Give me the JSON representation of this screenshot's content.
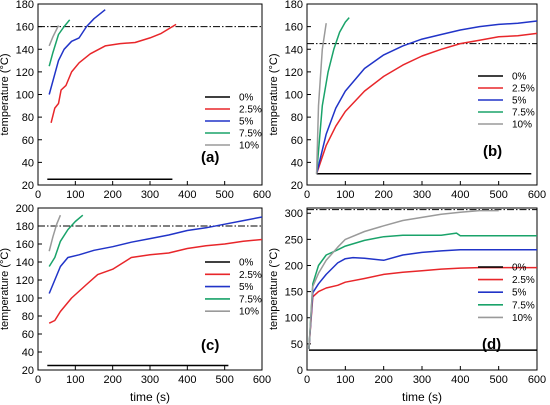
{
  "chart_data": [
    {
      "id": "a",
      "type": "line",
      "panel_label": "(a)",
      "xlabel": "",
      "ylabel": "temperature (°C)",
      "xlim": [
        0,
        600
      ],
      "ylim": [
        20,
        180
      ],
      "xticks": [
        "0",
        "100",
        "200",
        "300",
        "400",
        "500",
        "600"
      ],
      "yticks": [
        "20",
        "40",
        "60",
        "80",
        "100",
        "120",
        "140",
        "160",
        "180"
      ],
      "reference_line": 160,
      "legend_position": "right",
      "series": [
        {
          "name": "0%",
          "color": "#000000",
          "x": [
            25,
            360
          ],
          "y": [
            25,
            25
          ]
        },
        {
          "name": "2.5%",
          "color": "#e8262a",
          "x": [
            35,
            45,
            55,
            62,
            75,
            90,
            110,
            140,
            180,
            220,
            260,
            300,
            330,
            370
          ],
          "y": [
            75,
            88,
            92,
            104,
            108,
            120,
            128,
            136,
            143,
            145,
            146,
            150,
            154,
            162
          ]
        },
        {
          "name": "5%",
          "color": "#2134c8",
          "x": [
            30,
            45,
            55,
            70,
            90,
            110,
            130,
            150,
            180
          ],
          "y": [
            100,
            118,
            130,
            140,
            147,
            150,
            160,
            167,
            175
          ]
        },
        {
          "name": "7.5%",
          "color": "#1aa36a",
          "x": [
            30,
            40,
            55,
            70,
            85
          ],
          "y": [
            125,
            137,
            153,
            160,
            166
          ]
        },
        {
          "name": "10%",
          "color": "#9a9a9a",
          "x": [
            30,
            40,
            55
          ],
          "y": [
            143,
            151,
            161
          ]
        }
      ]
    },
    {
      "id": "b",
      "type": "line",
      "panel_label": "(b)",
      "xlabel": "",
      "ylabel": "temperature (°C)",
      "xlim": [
        0,
        600
      ],
      "ylim": [
        20,
        180
      ],
      "xticks": [
        "0",
        "100",
        "200",
        "300",
        "400",
        "500",
        "600"
      ],
      "yticks": [
        "20",
        "40",
        "60",
        "80",
        "100",
        "120",
        "140",
        "160",
        "180"
      ],
      "reference_line": 145,
      "legend_position": "right",
      "series": [
        {
          "name": "0%",
          "color": "#000000",
          "x": [
            25,
            585
          ],
          "y": [
            30,
            30
          ]
        },
        {
          "name": "2.5%",
          "color": "#e8262a",
          "x": [
            25,
            50,
            75,
            100,
            150,
            200,
            250,
            300,
            350,
            400,
            450,
            500,
            550,
            600
          ],
          "y": [
            30,
            55,
            72,
            85,
            103,
            116,
            126,
            134,
            140,
            145,
            148,
            151,
            152,
            154
          ]
        },
        {
          "name": "5%",
          "color": "#2134c8",
          "x": [
            25,
            50,
            75,
            100,
            150,
            200,
            250,
            300,
            350,
            400,
            450,
            500,
            550,
            600
          ],
          "y": [
            30,
            65,
            88,
            103,
            123,
            135,
            143,
            149,
            153,
            157,
            160,
            162,
            163,
            165
          ]
        },
        {
          "name": "7.5%",
          "color": "#1aa36a",
          "x": [
            25,
            40,
            55,
            70,
            85,
            100,
            110
          ],
          "y": [
            30,
            90,
            120,
            140,
            155,
            164,
            168
          ]
        },
        {
          "name": "10%",
          "color": "#9a9a9a",
          "x": [
            25,
            30,
            40,
            50
          ],
          "y": [
            30,
            90,
            140,
            163
          ]
        }
      ]
    },
    {
      "id": "c",
      "type": "line",
      "panel_label": "(c)",
      "xlabel": "time (s)",
      "ylabel": "temperature (°C)",
      "xlim": [
        0,
        600
      ],
      "ylim": [
        20,
        200
      ],
      "xticks": [
        "0",
        "100",
        "200",
        "300",
        "400",
        "500",
        "600"
      ],
      "yticks": [
        "20",
        "40",
        "60",
        "80",
        "100",
        "120",
        "140",
        "160",
        "180",
        "200"
      ],
      "reference_line": 180,
      "legend_position": "right",
      "series": [
        {
          "name": "0%",
          "color": "#000000",
          "x": [
            25,
            510
          ],
          "y": [
            25,
            25
          ]
        },
        {
          "name": "2.5%",
          "color": "#e8262a",
          "x": [
            30,
            45,
            60,
            90,
            130,
            160,
            200,
            250,
            300,
            350,
            400,
            450,
            500,
            550,
            600
          ],
          "y": [
            72,
            75,
            85,
            100,
            115,
            126,
            132,
            145,
            148,
            150,
            155,
            158,
            160,
            163,
            165
          ]
        },
        {
          "name": "5%",
          "color": "#2134c8",
          "x": [
            30,
            45,
            60,
            80,
            110,
            150,
            200,
            250,
            300,
            350,
            400,
            450,
            500,
            550,
            600
          ],
          "y": [
            105,
            120,
            135,
            145,
            148,
            153,
            157,
            162,
            166,
            170,
            175,
            178,
            182,
            186,
            190
          ]
        },
        {
          "name": "7.5%",
          "color": "#1aa36a",
          "x": [
            30,
            45,
            60,
            80,
            100,
            120
          ],
          "y": [
            135,
            145,
            163,
            176,
            185,
            192
          ]
        },
        {
          "name": "10%",
          "color": "#9a9a9a",
          "x": [
            30,
            40,
            50,
            60
          ],
          "y": [
            152,
            168,
            182,
            192
          ]
        }
      ]
    },
    {
      "id": "d",
      "type": "line",
      "panel_label": "(d)",
      "xlabel": "time (s)",
      "ylabel": "temperature (°C)",
      "xlim": [
        0,
        600
      ],
      "ylim": [
        0,
        310
      ],
      "xticks": [
        "0",
        "100",
        "200",
        "300",
        "400",
        "500",
        "600"
      ],
      "yticks": [
        "0",
        "50",
        "100",
        "150",
        "200",
        "250",
        "300"
      ],
      "reference_line": 307,
      "legend_position": "right",
      "series": [
        {
          "name": "0%",
          "color": "#000000",
          "x": [
            5,
            600
          ],
          "y": [
            38,
            38
          ]
        },
        {
          "name": "2.5%",
          "color": "#e8262a",
          "x": [
            5,
            15,
            30,
            50,
            80,
            100,
            150,
            200,
            250,
            300,
            350,
            400,
            450,
            500,
            600
          ],
          "y": [
            40,
            140,
            150,
            157,
            162,
            168,
            175,
            183,
            187,
            190,
            193,
            195,
            196,
            196,
            196
          ]
        },
        {
          "name": "5%",
          "color": "#2134c8",
          "x": [
            5,
            15,
            30,
            50,
            80,
            100,
            120,
            150,
            200,
            250,
            300,
            350,
            400,
            450,
            500,
            600
          ],
          "y": [
            40,
            148,
            165,
            183,
            205,
            213,
            215,
            214,
            210,
            220,
            225,
            228,
            230,
            230,
            230,
            230
          ]
        },
        {
          "name": "7.5%",
          "color": "#1aa36a",
          "x": [
            5,
            15,
            30,
            50,
            80,
            100,
            150,
            200,
            250,
            300,
            350,
            390,
            400,
            450,
            500,
            600
          ],
          "y": [
            40,
            165,
            200,
            220,
            230,
            237,
            248,
            255,
            258,
            258,
            258,
            262,
            257,
            257,
            257,
            257
          ]
        },
        {
          "name": "10%",
          "color": "#9a9a9a",
          "x": [
            5,
            15,
            30,
            50,
            80,
            100,
            150,
            200,
            250,
            300,
            350,
            400,
            450,
            500
          ],
          "y": [
            40,
            160,
            185,
            210,
            235,
            250,
            265,
            276,
            286,
            292,
            298,
            302,
            305,
            305
          ]
        }
      ]
    }
  ]
}
